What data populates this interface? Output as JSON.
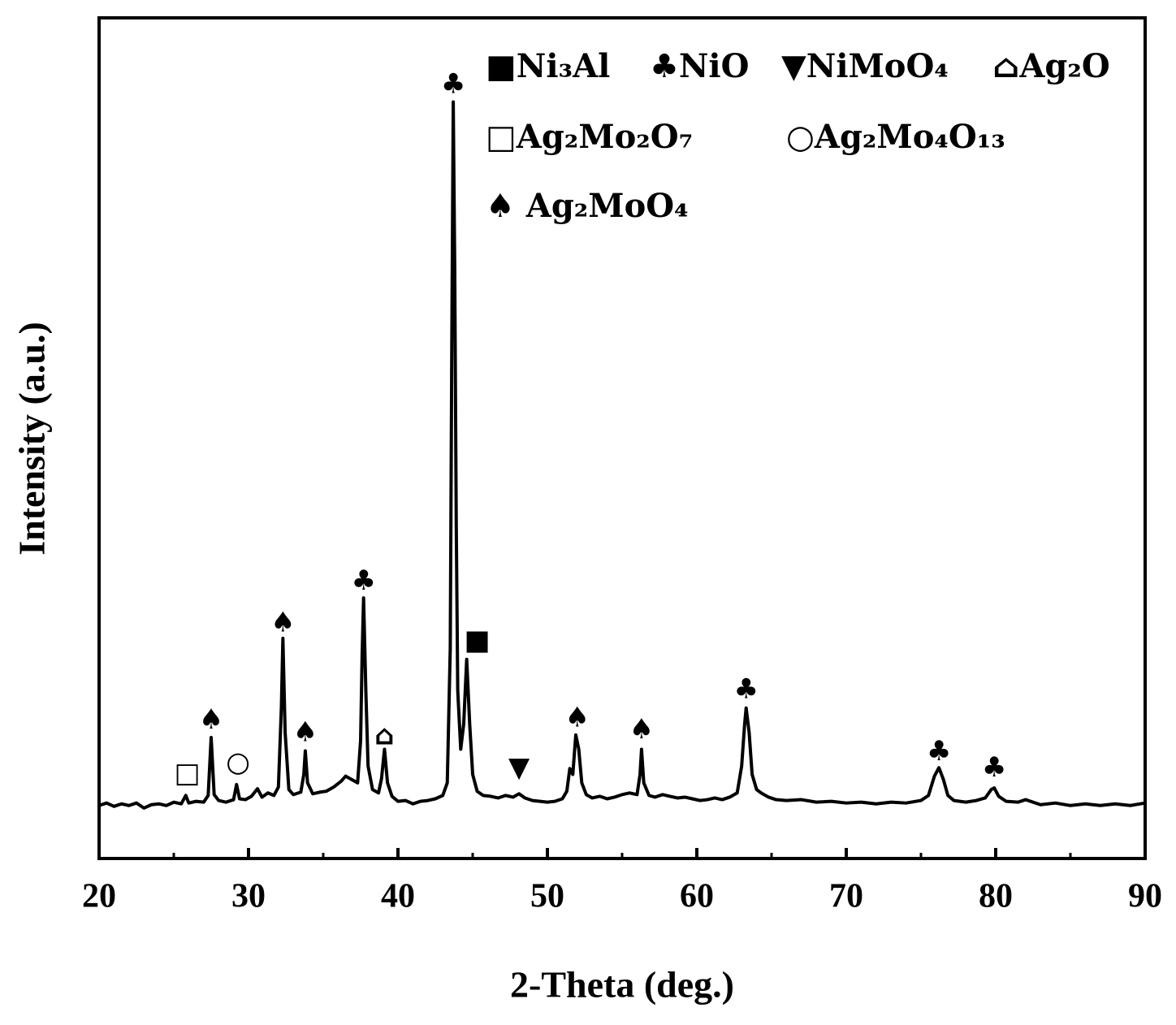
{
  "chart_data": {
    "type": "line",
    "xlabel": "2-Theta (deg.)",
    "ylabel": "Intensity (a.u.)",
    "xlim": [
      20,
      90
    ],
    "xticks": [
      20,
      30,
      40,
      50,
      60,
      70,
      80,
      90
    ],
    "xminorticks": [
      25,
      35,
      45,
      55,
      65,
      75,
      85
    ],
    "ylim": [
      0,
      100
    ],
    "color": "#000000",
    "legend": "upper right",
    "x": [
      20,
      20.5,
      21,
      21.5,
      22,
      22.5,
      23,
      23.5,
      24,
      24.5,
      25,
      25.5,
      25.8,
      26,
      26.5,
      27,
      27.3,
      27.5,
      27.7,
      28,
      28.5,
      29,
      29.2,
      29.4,
      29.8,
      30.2,
      30.6,
      30.9,
      31.3,
      31.7,
      32.0,
      32.2,
      32.3,
      32.45,
      32.7,
      33.0,
      33.5,
      33.7,
      33.8,
      33.95,
      34.3,
      34.8,
      35.2,
      35.7,
      36.2,
      36.5,
      36.9,
      37.3,
      37.5,
      37.6,
      37.7,
      37.85,
      38.0,
      38.3,
      38.7,
      38.9,
      39.1,
      39.3,
      39.6,
      40,
      40.5,
      41,
      41.5,
      42,
      42.5,
      43,
      43.3,
      43.5,
      43.6,
      43.7,
      43.8,
      43.9,
      44.0,
      44.2,
      44.4,
      44.6,
      44.8,
      45.0,
      45.3,
      45.7,
      46.2,
      46.7,
      47.2,
      47.7,
      48.1,
      48.5,
      49,
      49.5,
      50,
      50.5,
      51.0,
      51.3,
      51.5,
      51.7,
      51.9,
      52.1,
      52.3,
      52.6,
      53,
      53.5,
      54,
      54.5,
      55,
      55.5,
      56.0,
      56.2,
      56.3,
      56.45,
      56.8,
      57.2,
      57.7,
      58.2,
      58.7,
      59.2,
      59.7,
      60.2,
      60.7,
      61.2,
      61.7,
      62.2,
      62.7,
      63.0,
      63.2,
      63.3,
      63.5,
      63.7,
      64.0,
      64.3,
      64.8,
      65.3,
      66,
      67,
      68,
      69,
      70,
      71,
      72,
      73,
      74,
      75,
      75.5,
      75.9,
      76.2,
      76.5,
      76.8,
      77.2,
      78,
      78.7,
      79.3,
      79.7,
      79.9,
      80.2,
      80.7,
      81.5,
      82,
      83,
      84,
      85,
      86,
      87,
      88,
      89,
      90
    ],
    "values": [
      6.3,
      6.6,
      6.2,
      6.5,
      6.3,
      6.6,
      6.0,
      6.4,
      6.5,
      6.3,
      6.7,
      6.5,
      7.5,
      6.6,
      6.8,
      6.7,
      7.5,
      14.4,
      7.6,
      6.9,
      6.7,
      7.0,
      8.8,
      7.1,
      7.0,
      7.4,
      8.3,
      7.3,
      7.8,
      7.5,
      8.5,
      18,
      26.2,
      15,
      8.2,
      7.6,
      7.9,
      10,
      12.8,
      9,
      7.7,
      7.9,
      8.0,
      8.5,
      9.2,
      9.8,
      9.4,
      9.0,
      14,
      24,
      31,
      20,
      11,
      8.2,
      7.8,
      9.5,
      13,
      9.0,
      7.4,
      6.8,
      6.9,
      6.5,
      6.8,
      6.9,
      7.1,
      7.5,
      9,
      25,
      60,
      90,
      70,
      40,
      20,
      13,
      16,
      23.7,
      16,
      10,
      8,
      7.5,
      7.4,
      7.2,
      7.5,
      7.3,
      7.7,
      7.2,
      6.9,
      6.8,
      6.7,
      6.8,
      7.1,
      8,
      10.7,
      10,
      14.7,
      13,
      9,
      7.6,
      7.2,
      7.4,
      7.1,
      7.3,
      7.6,
      7.8,
      7.6,
      10,
      13,
      9,
      7.5,
      7.3,
      7.6,
      7.4,
      7.2,
      7.3,
      7.1,
      6.9,
      7.0,
      7.2,
      7.0,
      7.3,
      7.8,
      11,
      16,
      17.9,
      15,
      10,
      8.2,
      7.8,
      7.3,
      7.0,
      6.9,
      7.0,
      6.7,
      6.8,
      6.6,
      6.7,
      6.5,
      6.7,
      6.6,
      6.9,
      7.5,
      9.8,
      10.8,
      9.4,
      7.5,
      6.9,
      6.7,
      6.9,
      7.2,
      8.2,
      8.4,
      7.4,
      6.8,
      6.7,
      7.0,
      6.4,
      6.6,
      6.3,
      6.5,
      6.3,
      6.5,
      6.3,
      6.6
    ],
    "legend_items": [
      "■Ni₃Al",
      "♣NiO",
      "▼NiMoO₄",
      "⌂Ag₂O",
      "□Ag₂Mo₂O₇",
      "○Ag₂Mo₄O₁₃",
      "♠ Ag₂MoO₄"
    ],
    "annotations": [
      {
        "text": "□",
        "x": 25.9,
        "y": 10.0
      },
      {
        "text": "○",
        "x": 29.3,
        "y": 11.3
      },
      {
        "text": "♠",
        "x": 27.5,
        "y": 16.4
      },
      {
        "text": "♠",
        "x": 32.3,
        "y": 27.9
      },
      {
        "text": "♠",
        "x": 33.8,
        "y": 14.9
      },
      {
        "text": "♣",
        "x": 37.7,
        "y": 32.9
      },
      {
        "text": "⌂",
        "x": 39.1,
        "y": 14.5
      },
      {
        "text": "♣",
        "x": 43.7,
        "y": 92
      },
      {
        "text": "■",
        "x": 45.3,
        "y": 25.8
      },
      {
        "text": "▼",
        "x": 48.1,
        "y": 10.7
      },
      {
        "text": "♠",
        "x": 52,
        "y": 16.6
      },
      {
        "text": "♠",
        "x": 56.3,
        "y": 15.2
      },
      {
        "text": "♣",
        "x": 63.3,
        "y": 20
      },
      {
        "text": "♣",
        "x": 76.2,
        "y": 12.6
      },
      {
        "text": "♣",
        "x": 79.9,
        "y": 10.7
      }
    ]
  }
}
